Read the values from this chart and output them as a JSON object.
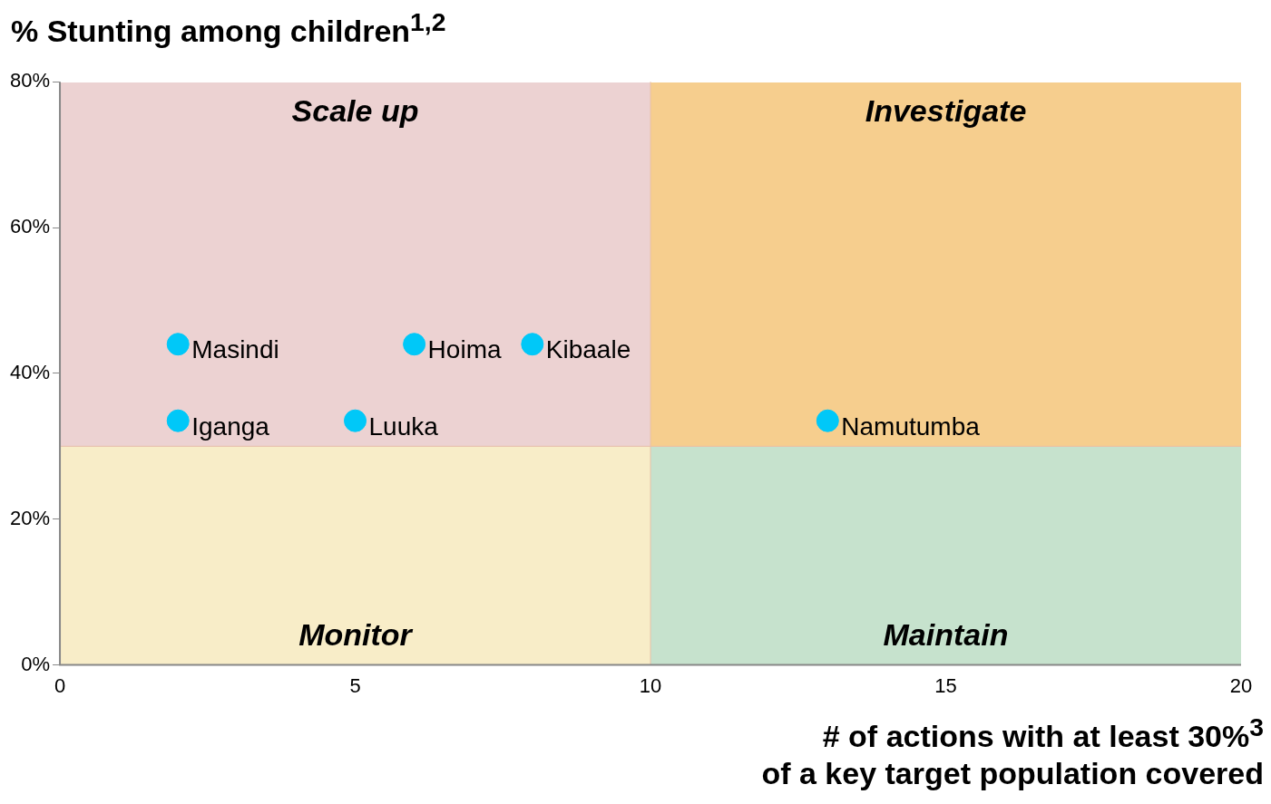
{
  "chart_data": {
    "type": "scatter",
    "title": "% Stunting among children$^{1,2}$",
    "xlabel": "# of actions with at least 30%$^{3}$\nof a key target population covered",
    "series": [
      {
        "color": "#00c8f8",
        "x": [
          2,
          6,
          8,
          2,
          5,
          13
        ],
        "values": [
          44,
          44,
          44,
          33.5,
          33.5,
          33.5
        ]
      }
    ],
    "annotations": [
      {
        "text": "Masindi",
        "x": 2,
        "y": 44
      },
      {
        "text": "Hoima",
        "x": 6,
        "y": 44
      },
      {
        "text": "Kibaale",
        "x": 8,
        "y": 44
      },
      {
        "text": "Iganga",
        "x": 2,
        "y": 33.5
      },
      {
        "text": "Luuka",
        "x": 5,
        "y": 33.5
      },
      {
        "text": "Namutumba",
        "x": 13,
        "y": 33.5
      },
      "Scale up",
      "Investigate",
      "Monitor",
      "Maintain"
    ],
    "ref_lines": [
      {
        "axis": "x",
        "value": 10,
        "color": "#e8c0a8"
      },
      {
        "axis": "y",
        "value": 30,
        "color": "#e8c0a8"
      }
    ],
    "xlim": [
      0,
      20
    ],
    "xticks": [
      0,
      5,
      10,
      15,
      20
    ],
    "ylim": [
      0,
      80
    ],
    "yticks": [
      {
        "value": 0,
        "label": "0%"
      },
      {
        "value": 20,
        "label": "20%"
      },
      {
        "value": 40,
        "label": "40%"
      },
      {
        "value": 60,
        "label": "60%"
      },
      {
        "value": 80,
        "label": "80%"
      }
    ],
    "grid": false,
    "legend": false,
    "marker": "circle"
  }
}
